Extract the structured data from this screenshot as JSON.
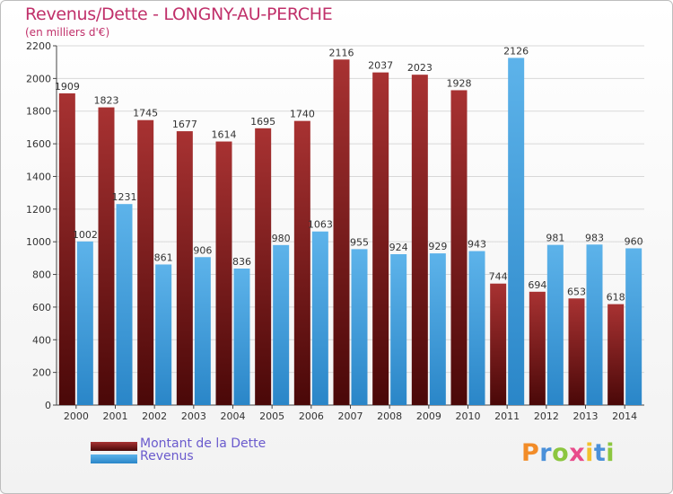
{
  "chart_data": {
    "type": "bar",
    "title": "Revenus/Dette - LONGNY-AU-PERCHE",
    "subtitle": "(en milliers d'€)",
    "categories": [
      "2000",
      "2001",
      "2002",
      "2003",
      "2004",
      "2005",
      "2006",
      "2007",
      "2008",
      "2009",
      "2010",
      "2011",
      "2012",
      "2013",
      "2014"
    ],
    "series": [
      {
        "name": "Montant de la Dette",
        "color": "#8b1a1a",
        "values": [
          1909,
          1823,
          1745,
          1677,
          1614,
          1695,
          1740,
          2116,
          2037,
          2023,
          1928,
          744,
          694,
          653,
          618
        ]
      },
      {
        "name": "Revenus",
        "color": "#4fa8e0",
        "values": [
          1002,
          1231,
          861,
          906,
          836,
          980,
          1063,
          955,
          924,
          929,
          943,
          2126,
          981,
          983,
          960
        ]
      }
    ],
    "ylim": [
      0,
      2200
    ],
    "yticks": [
      0,
      200,
      400,
      600,
      800,
      1000,
      1200,
      1400,
      1600,
      1800,
      2000,
      2200
    ],
    "grid": true,
    "legend_position": "bottom-left"
  },
  "logo": {
    "letters": [
      "P",
      "r",
      "o",
      "x",
      "i",
      "t",
      "i"
    ],
    "colors": [
      "#f28c28",
      "#4a90d9",
      "#8cc63f",
      "#e84c8b",
      "#f2c12e",
      "#4a90d9",
      "#8cc63f"
    ]
  }
}
